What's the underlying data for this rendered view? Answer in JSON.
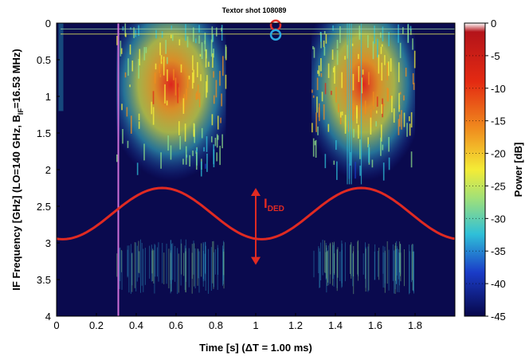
{
  "chart_data": {
    "type": "heatmap",
    "title": "Textor shot 108089",
    "xlabel": "Time [s] (ΔT = 1.00 ms)",
    "ylabel_parts": {
      "main": "IF Frequency [GHz] (LO=140 GHz, B",
      "sub": "IF",
      "tail": "=16.53 MHz)"
    },
    "colorbar_label": "Power [dB]",
    "xlim": [
      0,
      2.0
    ],
    "ylim": [
      4,
      0
    ],
    "xticks": [
      0,
      0.2,
      0.4,
      0.6,
      0.8,
      1,
      1.2,
      1.4,
      1.6,
      1.8
    ],
    "x_tick_labels": [
      "0",
      "0.2",
      "0.4",
      "0.6",
      "0.8",
      "1",
      "1.2",
      "1.4",
      "1.6",
      "1.8"
    ],
    "yticks": [
      0,
      0.5,
      1,
      1.5,
      2,
      2.5,
      3,
      3.5,
      4
    ],
    "y_tick_labels": [
      "0",
      "0.5",
      "1",
      "1.5",
      "2",
      "2.5",
      "3",
      "3.5",
      "4"
    ],
    "colorbar_ticks": [
      0,
      -5,
      -10,
      -15,
      -20,
      -25,
      -30,
      -35,
      -40,
      -45
    ],
    "colorbar_tick_labels": [
      "0",
      "-5",
      "-10",
      "-15",
      "-20",
      "-25",
      "-30",
      "-35",
      "-40",
      "-45"
    ],
    "colorbar_range_db": [
      -45,
      0
    ],
    "colormap": [
      "#07074a",
      "#1a3cc8",
      "#2fc0d8",
      "#8fe08a",
      "#f6f23a",
      "#f08c1e",
      "#c81a12",
      "#ffffff"
    ],
    "emission_bursts": [
      {
        "t_start": 0.3,
        "t_end": 0.85,
        "f_peak_ghz": 0.9,
        "f_extent_ghz": 2.2,
        "power_db": -12
      },
      {
        "t_start": 1.28,
        "t_end": 1.8,
        "f_peak_ghz": 0.9,
        "f_extent_ghz": 2.2,
        "power_db": -12
      }
    ],
    "weak_band": {
      "f_range_ghz": [
        2.95,
        3.7
      ],
      "power_db": -38
    },
    "vertical_marker_time_s": 0.31,
    "horizontal_lines_ghz": [
      0.08,
      0.15
    ],
    "markers": [
      {
        "t": 1.1,
        "f_ghz": 0.03,
        "color": "#e0322a"
      },
      {
        "t": 1.1,
        "f_ghz": 0.16,
        "color": "#2ca8e0"
      }
    ],
    "sine_overlay": {
      "color": "#e02a22",
      "center_ghz": 2.6,
      "amplitude_ghz": 0.35,
      "period_s": 1.0,
      "phase_peak_s": 0.53
    },
    "annotation": {
      "label": "I",
      "sub": "DED",
      "arrow_time_s": 1.0,
      "arrow_f_from_ghz": 2.25,
      "arrow_f_to_ghz": 3.3,
      "color": "#e02a22"
    }
  }
}
